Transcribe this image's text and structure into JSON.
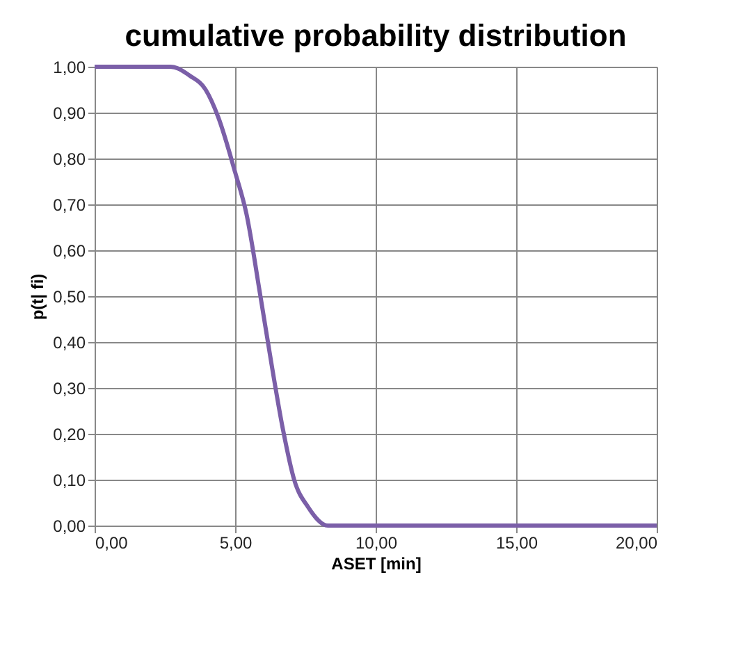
{
  "chart_data": {
    "type": "line",
    "title": "cumulative probability distribution",
    "xlabel": "ASET [min]",
    "ylabel": "p(t| fi)",
    "x": [
      0,
      1,
      2,
      2.7,
      3.4,
      3.95,
      4.4,
      5.0,
      5.4,
      5.9,
      6.3,
      6.7,
      7.1,
      7.6,
      8.3,
      10,
      15,
      20
    ],
    "series": [
      {
        "color": "#7b5fa8",
        "values": [
          1,
          1,
          1,
          1.0,
          0.98,
          0.95,
          0.89,
          0.77,
          0.68,
          0.5,
          0.35,
          0.21,
          0.1,
          0.04,
          0.0,
          0,
          0,
          0
        ]
      }
    ],
    "xlim": [
      0,
      20
    ],
    "ylim": [
      0,
      1
    ],
    "xticks": [
      {
        "value": 0,
        "label": "0,00"
      },
      {
        "value": 5,
        "label": "5,00"
      },
      {
        "value": 10,
        "label": "10,00"
      },
      {
        "value": 15,
        "label": "15,00"
      },
      {
        "value": 20,
        "label": "20,00"
      }
    ],
    "yticks": [
      {
        "value": 0,
        "label": "0,00"
      },
      {
        "value": 0.1,
        "label": "0,10"
      },
      {
        "value": 0.2,
        "label": "0,20"
      },
      {
        "value": 0.3,
        "label": "0,30"
      },
      {
        "value": 0.4,
        "label": "0,40"
      },
      {
        "value": 0.5,
        "label": "0,50"
      },
      {
        "value": 0.6,
        "label": "0,60"
      },
      {
        "value": 0.7,
        "label": "0,70"
      },
      {
        "value": 0.8,
        "label": "0,80"
      },
      {
        "value": 0.9,
        "label": "0,90"
      },
      {
        "value": 1,
        "label": "1,00"
      }
    ],
    "grid": true,
    "marker": "none",
    "line_style": "solid"
  }
}
